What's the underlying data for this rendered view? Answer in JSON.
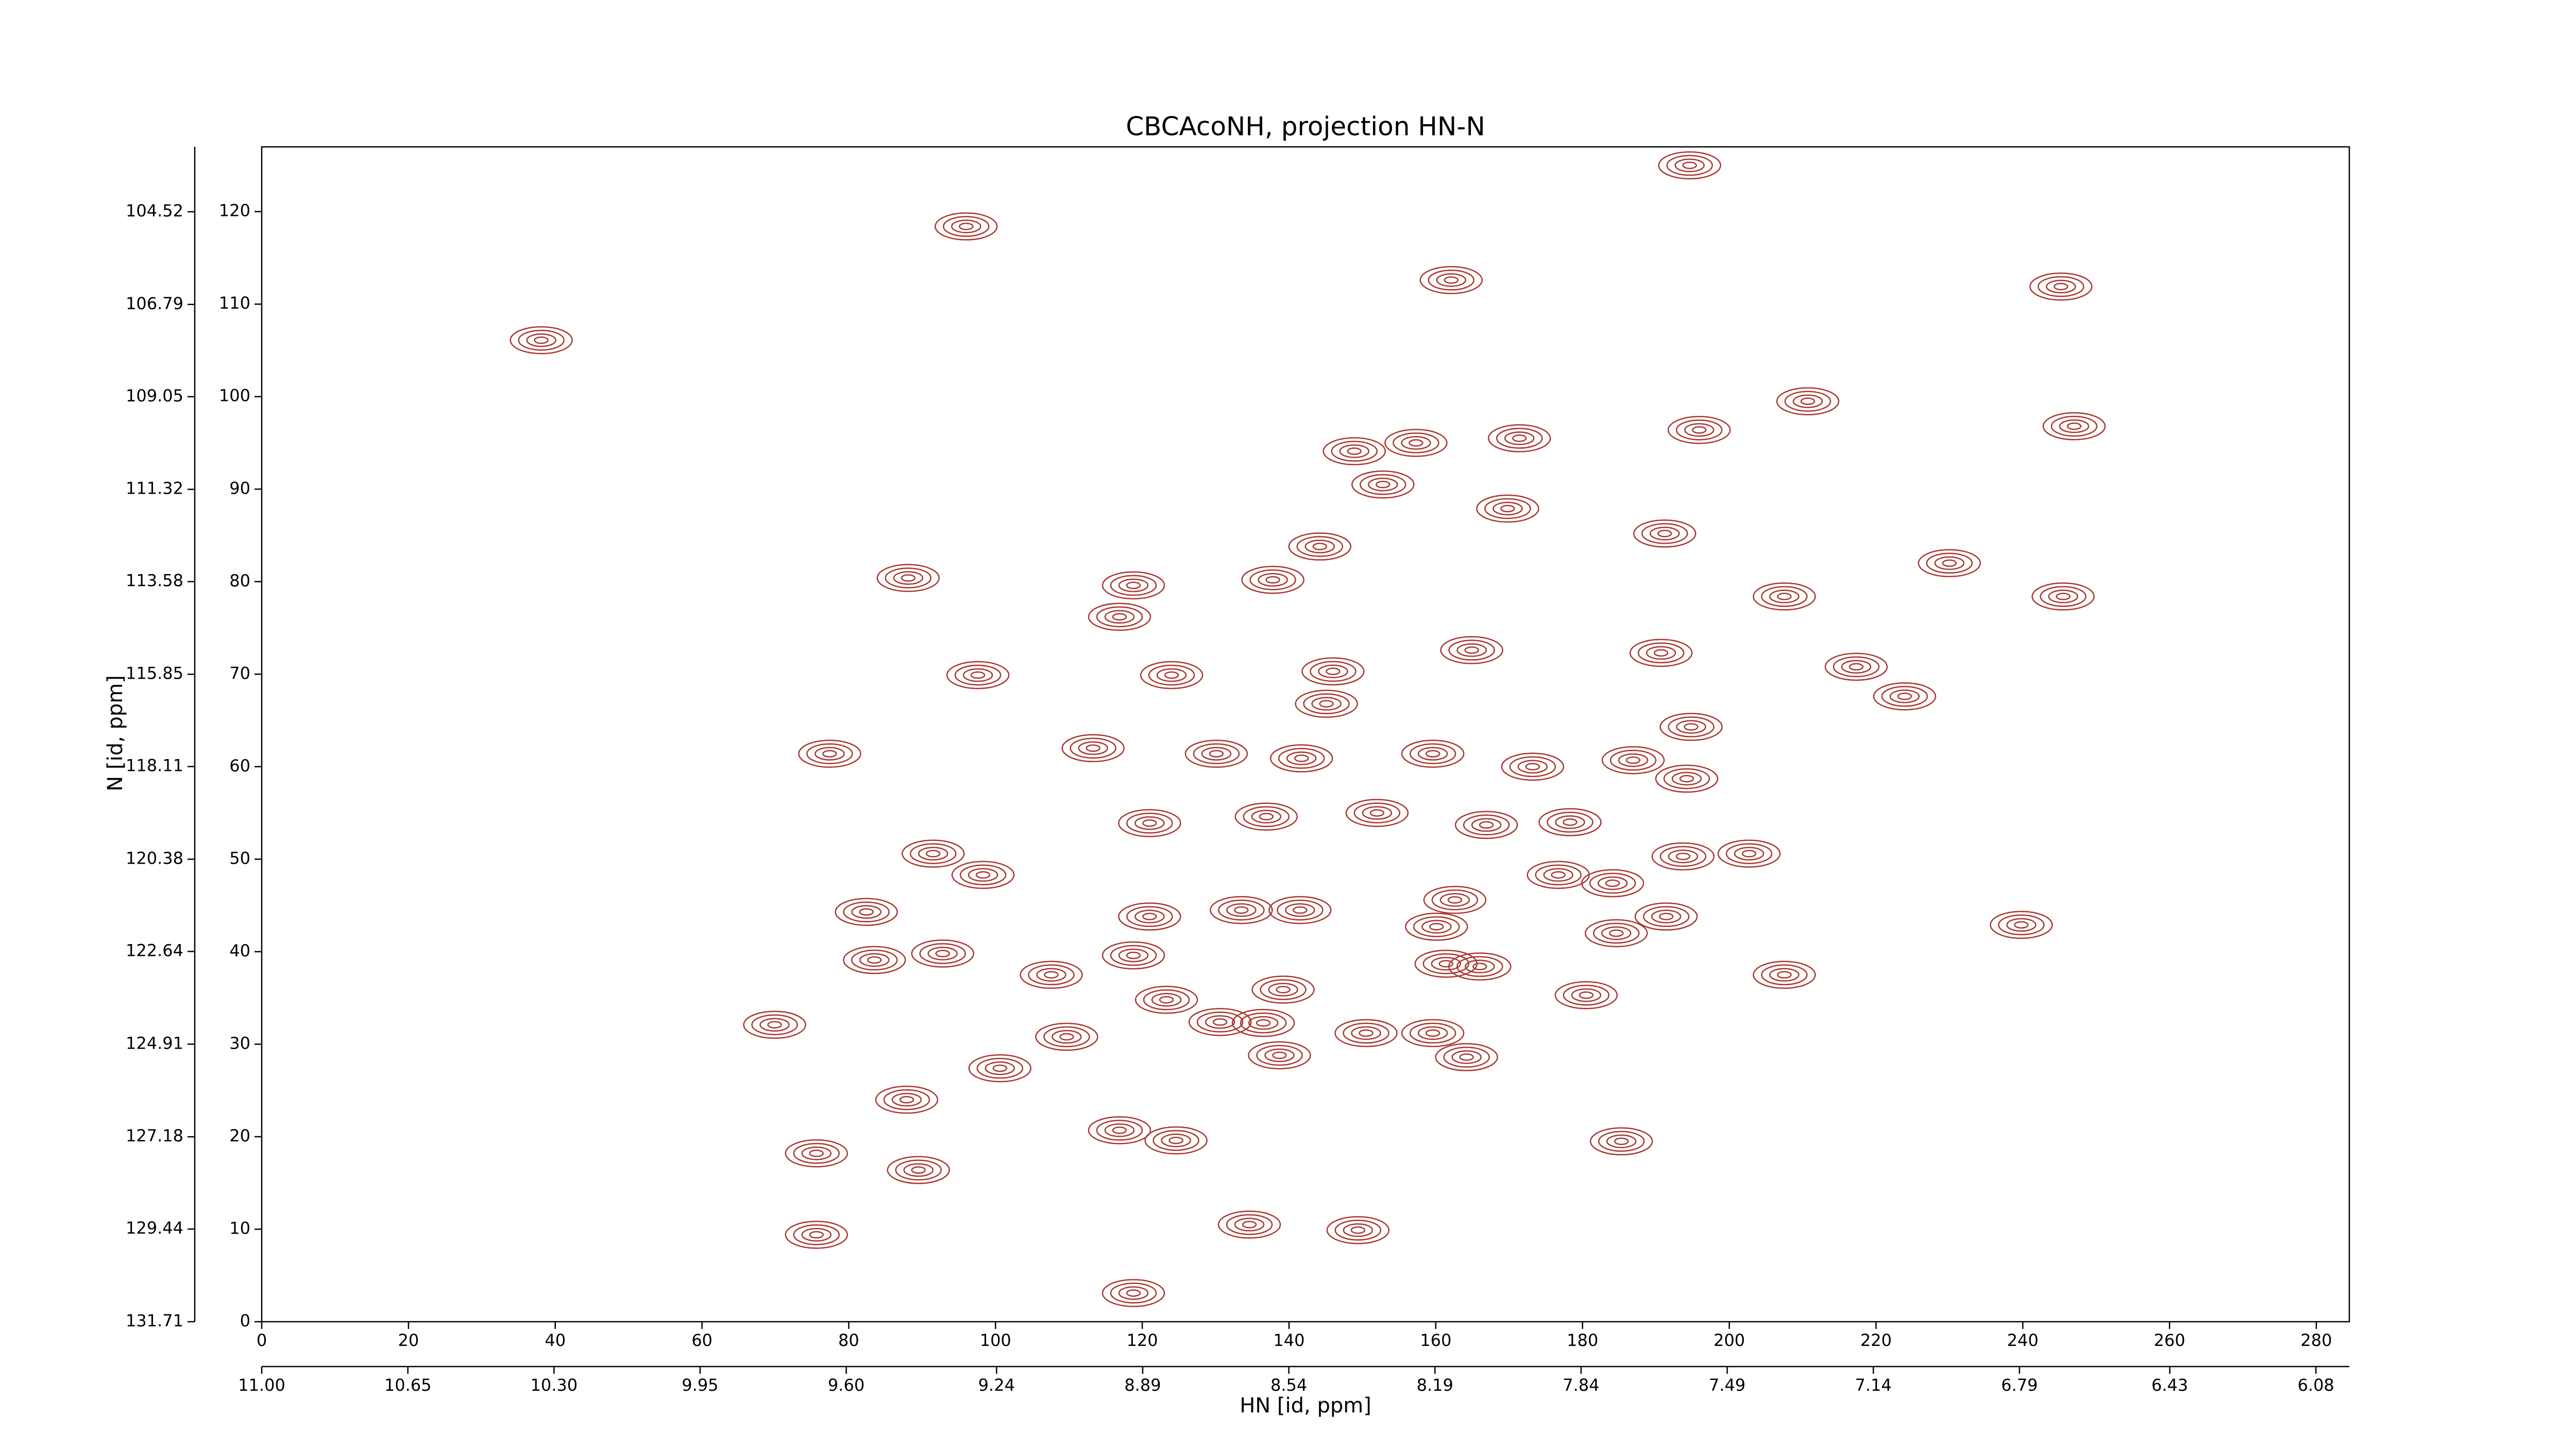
{
  "chart_data": {
    "type": "contour",
    "title": "CBCAcoNH, projection HN-N",
    "x_label": "HN [id, ppm]",
    "y_label": "N [id, ppm]",
    "xlim": [
      0,
      284.5
    ],
    "ylim": [
      0,
      127
    ],
    "xticks": [
      0,
      20,
      40,
      60,
      80,
      100,
      120,
      140,
      160,
      180,
      200,
      220,
      240,
      260,
      280
    ],
    "yticks": [
      0,
      10,
      20,
      30,
      40,
      50,
      60,
      70,
      80,
      90,
      100,
      110,
      120
    ],
    "x2lim": [
      11.0,
      6.0
    ],
    "x2ticks": [
      {
        "value": 11.0,
        "label": "11.00"
      },
      {
        "value": 10.65,
        "label": "10.65"
      },
      {
        "value": 10.3,
        "label": "10.30"
      },
      {
        "value": 9.95,
        "label": "9.95"
      },
      {
        "value": 9.6,
        "label": "9.60"
      },
      {
        "value": 9.24,
        "label": "9.24"
      },
      {
        "value": 8.89,
        "label": "8.89"
      },
      {
        "value": 8.54,
        "label": "8.54"
      },
      {
        "value": 8.19,
        "label": "8.19"
      },
      {
        "value": 7.84,
        "label": "7.84"
      },
      {
        "value": 7.49,
        "label": "7.49"
      },
      {
        "value": 7.14,
        "label": "7.14"
      },
      {
        "value": 6.79,
        "label": "6.79"
      },
      {
        "value": 6.43,
        "label": "6.43"
      },
      {
        "value": 6.08,
        "label": "6.08"
      }
    ],
    "y2lim": [
      131.71,
      102.93
    ],
    "y2ticks": [
      {
        "value": 104.52,
        "label": "104.52"
      },
      {
        "value": 106.79,
        "label": "106.79"
      },
      {
        "value": 109.05,
        "label": "109.05"
      },
      {
        "value": 111.32,
        "label": "111.32"
      },
      {
        "value": 113.58,
        "label": "113.58"
      },
      {
        "value": 115.85,
        "label": "115.85"
      },
      {
        "value": 118.11,
        "label": "118.11"
      },
      {
        "value": 120.38,
        "label": "120.38"
      },
      {
        "value": 122.64,
        "label": "122.64"
      },
      {
        "value": 124.91,
        "label": "124.91"
      },
      {
        "value": 127.18,
        "label": "127.18"
      },
      {
        "value": 129.44,
        "label": "129.44"
      },
      {
        "value": 131.71,
        "label": "131.71"
      }
    ],
    "color": "#a8372f",
    "peaks": {
      "x": [
        96,
        38.1,
        194.6,
        162.1,
        245.2,
        195.9,
        210.7,
        247,
        171.4,
        148.9,
        157.3,
        152.8,
        169.8,
        191.2,
        88.1,
        118.8,
        137.8,
        144.2,
        230,
        245.5,
        207.5,
        116.9,
        164.9,
        190.7,
        217.3,
        97.6,
        124,
        223.9,
        146,
        145.1,
        77.4,
        113.3,
        130.1,
        141.7,
        159.6,
        173.2,
        194.8,
        186.9,
        194.2,
        121,
        136.9,
        152,
        166.9,
        178.3,
        91.5,
        98.3,
        193.7,
        202.7,
        176.7,
        162.6,
        184.1,
        82.4,
        121,
        133.5,
        141.5,
        160.1,
        191.4,
        239.8,
        83.5,
        92.8,
        107.6,
        118.8,
        161.4,
        166,
        184.6,
        207.5,
        180.5,
        123.3,
        139.2,
        130.6,
        136.5,
        69.9,
        109.7,
        150.5,
        159.6,
        164.2,
        138.7,
        100.6,
        87.9,
        116.9,
        124.6,
        185.3,
        75.6,
        89.5,
        75.6,
        134.6,
        149.4,
        118.8
      ],
      "y": [
        118.4,
        106.1,
        125,
        112.6,
        111.9,
        96.4,
        99.5,
        96.8,
        95.5,
        94.1,
        95,
        90.5,
        87.9,
        85.2,
        80.4,
        79.6,
        80.2,
        83.8,
        82,
        78.4,
        78.4,
        76.2,
        72.6,
        72.3,
        70.8,
        69.9,
        69.9,
        67.6,
        70.3,
        66.8,
        61.4,
        62,
        61.4,
        60.9,
        61.4,
        60,
        64.3,
        60.7,
        58.7,
        53.9,
        54.6,
        55,
        53.7,
        54,
        50.6,
        48.3,
        50.3,
        50.6,
        48.3,
        45.6,
        47.4,
        44.3,
        43.8,
        44.5,
        44.5,
        42.7,
        43.8,
        42.9,
        39.1,
        39.8,
        37.5,
        39.6,
        38.7,
        38.4,
        42,
        37.5,
        35.3,
        34.8,
        35.9,
        32.4,
        32.3,
        32.1,
        30.8,
        31.2,
        31.2,
        28.6,
        28.8,
        27.4,
        24,
        20.7,
        19.6,
        19.5,
        18.2,
        16.4,
        9.4,
        10.5,
        9.9,
        3.1
      ]
    }
  }
}
